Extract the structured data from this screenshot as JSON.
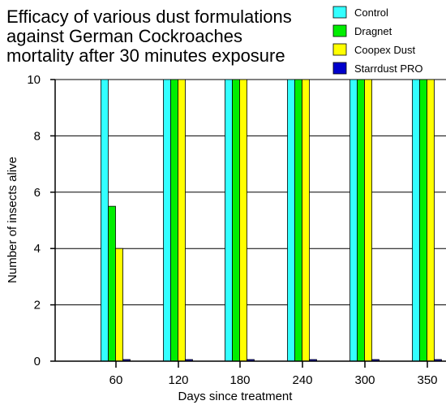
{
  "chart_data": {
    "type": "bar",
    "title_lines": [
      "Efficacy of various dust formulations",
      "against German Cockroaches",
      "mortality after 30 minutes exposure"
    ],
    "xlabel": "Days since treatment",
    "ylabel": "Number of insects alive",
    "categories": [
      "60",
      "120",
      "180",
      "240",
      "300",
      "350"
    ],
    "ylim": [
      0,
      10
    ],
    "yticks": [
      "0",
      "2",
      "4",
      "6",
      "8",
      "10"
    ],
    "grid": true,
    "legend_position": "top-right",
    "series": [
      {
        "name": "Control",
        "color": "#33ffff",
        "values": [
          10,
          10,
          10,
          10,
          10,
          10
        ]
      },
      {
        "name": "Dragnet",
        "color": "#00ee00",
        "values": [
          5.5,
          10,
          10,
          10,
          10,
          10
        ]
      },
      {
        "name": "Coopex Dust",
        "color": "#ffff00",
        "values": [
          4,
          10,
          10,
          10,
          10,
          10
        ]
      },
      {
        "name": "Starrdust PRO",
        "color": "#0000cc",
        "values": [
          0.05,
          0.05,
          0.05,
          0.05,
          0.05,
          0.05
        ]
      }
    ]
  }
}
